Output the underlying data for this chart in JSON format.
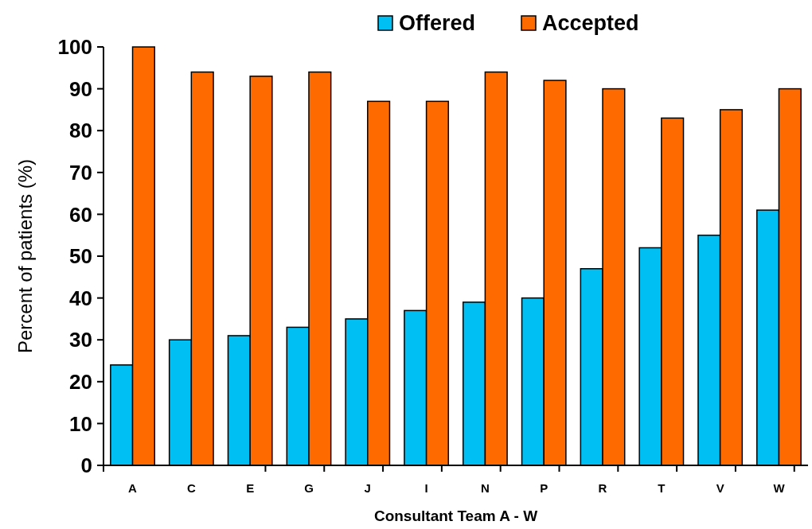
{
  "chart_data": {
    "type": "bar",
    "xlabel": "Consultant Team A - W",
    "ylabel": "Percent of patients (%)",
    "categories": [
      "A",
      "C",
      "E",
      "G",
      "J",
      "I",
      "N",
      "P",
      "R",
      "T",
      "V",
      "W"
    ],
    "series": [
      {
        "name": "Offered",
        "color": "#00bff3",
        "values": [
          24,
          30,
          31,
          33,
          35,
          37,
          39,
          40,
          47,
          52,
          55,
          61
        ]
      },
      {
        "name": "Accepted",
        "color": "#ff6a00",
        "values": [
          100,
          94,
          93,
          94,
          87,
          87,
          94,
          92,
          90,
          83,
          85,
          90
        ]
      }
    ],
    "ylim": [
      0,
      100
    ],
    "yticks": [
      0,
      10,
      20,
      30,
      40,
      50,
      60,
      70,
      80,
      90,
      100
    ],
    "grid": false,
    "legend": "top"
  }
}
